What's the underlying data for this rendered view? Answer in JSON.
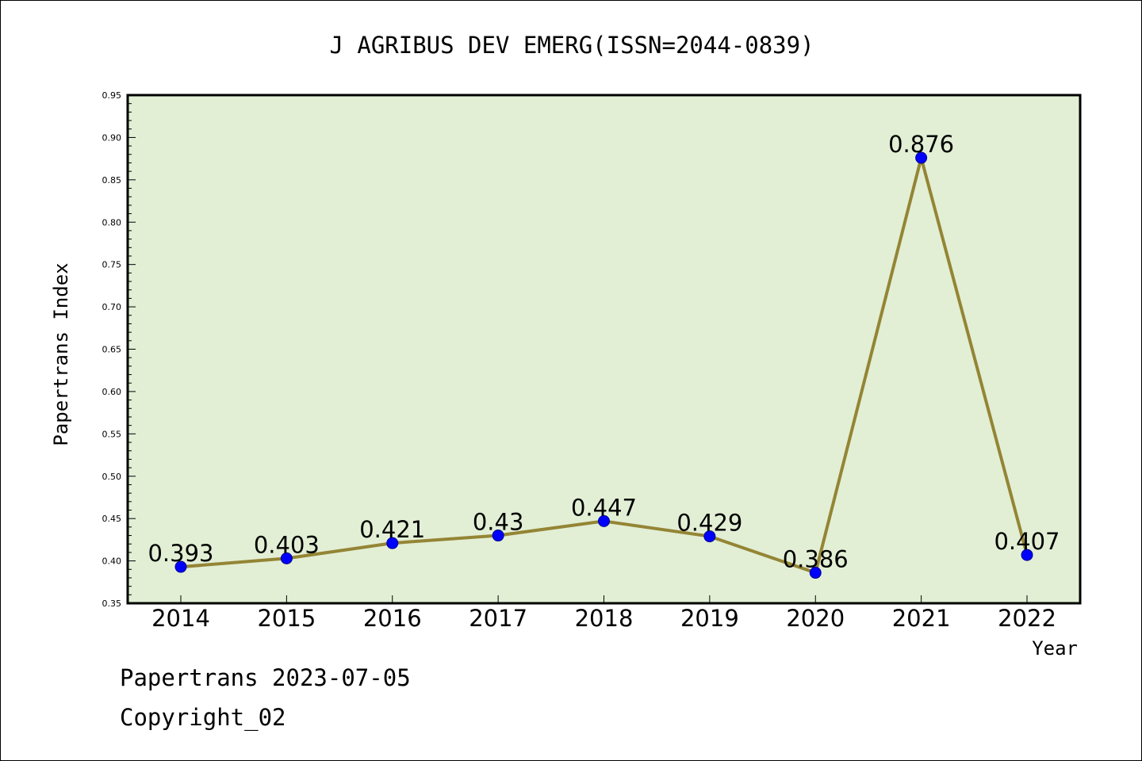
{
  "chart_data": {
    "type": "line",
    "title": "J AGRIBUS DEV EMERG(ISSN=2044-0839)",
    "xlabel": "Year",
    "ylabel": "Papertrans Index",
    "categories": [
      "2014",
      "2015",
      "2016",
      "2017",
      "2018",
      "2019",
      "2020",
      "2021",
      "2022"
    ],
    "series": [
      {
        "values": [
          0.393,
          0.403,
          0.421,
          0.43,
          0.447,
          0.429,
          0.386,
          0.876,
          0.407
        ],
        "data_labels": [
          "0.393",
          "0.403",
          "0.421",
          "0.43",
          "0.447",
          "0.429",
          "0.386",
          "0.876",
          "0.407"
        ]
      }
    ],
    "ylim": [
      0.35,
      0.95
    ],
    "yticks": [
      "0.35",
      "0.40",
      "0.45",
      "0.50",
      "0.55",
      "0.60",
      "0.65",
      "0.70",
      "0.75",
      "0.80",
      "0.85",
      "0.90",
      "0.95"
    ],
    "grid": false,
    "legend": "none",
    "colors": {
      "plot_background": "#e2efd5",
      "line": "#948535",
      "marker": "#0000ff"
    }
  },
  "footer": {
    "line1": "Papertrans 2023-07-05",
    "line2": "Copyright_02"
  }
}
